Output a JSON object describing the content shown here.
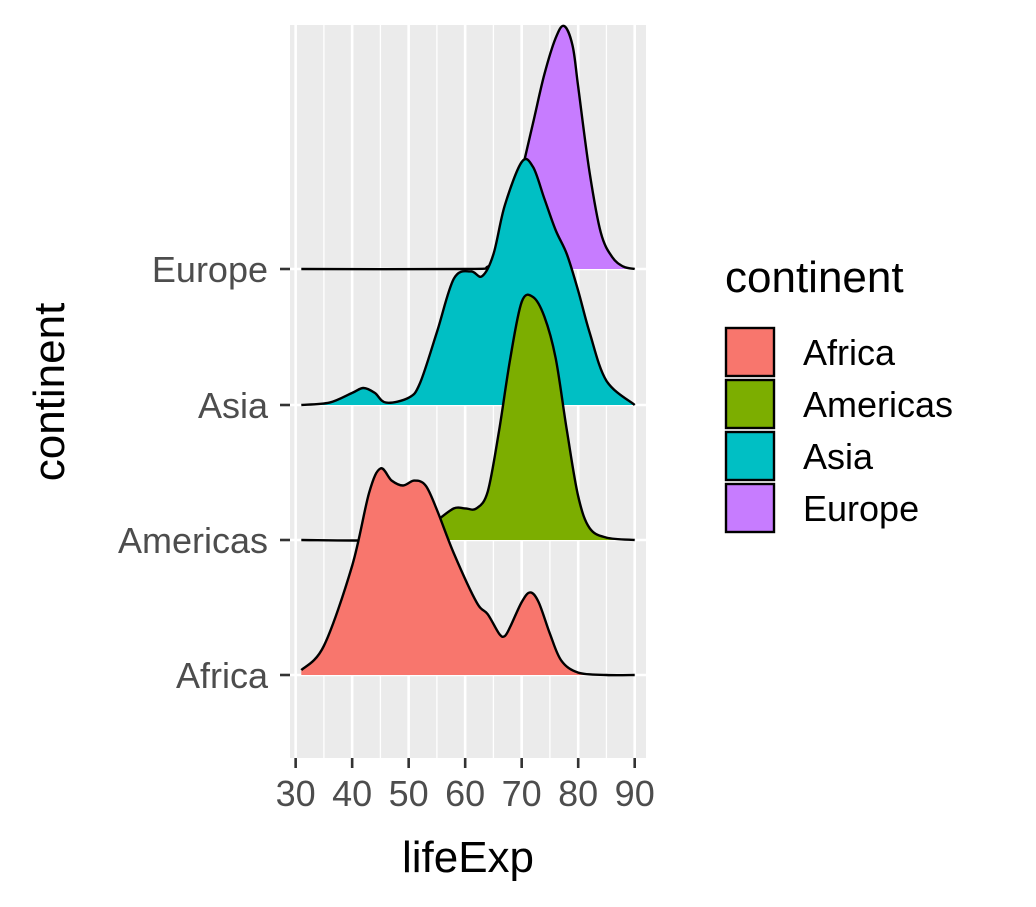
{
  "chart_data": {
    "type": "area",
    "subtype": "ridgeline",
    "title": "",
    "xlabel": "lifeExp",
    "ylabel": "continent",
    "xlim": [
      29,
      92
    ],
    "x_ticks": [
      30,
      40,
      50,
      60,
      70,
      80,
      90
    ],
    "x_tick_labels": [
      "30",
      "40",
      "50",
      "60",
      "70",
      "80",
      "90"
    ],
    "categories": [
      "Africa",
      "Americas",
      "Asia",
      "Europe"
    ],
    "grid": true,
    "legend": {
      "title": "continent",
      "position": "right",
      "items": [
        "Africa",
        "Americas",
        "Asia",
        "Europe"
      ]
    },
    "colors": {
      "Africa": "#F8766D",
      "Americas": "#7CAE00",
      "Asia": "#00BFC4",
      "Europe": "#C77CFF",
      "panel_background": "#EBEBEB",
      "grid_line": "#FFFFFF"
    },
    "series": [
      {
        "name": "Africa",
        "x": [
          31,
          35,
          40,
          43,
          45,
          47,
          49,
          51,
          53,
          55,
          58,
          62,
          64,
          66,
          67,
          68,
          70,
          71.5,
          73,
          75,
          77,
          80,
          85,
          90
        ],
        "density_rel": [
          0.02,
          0.12,
          0.45,
          0.75,
          0.85,
          0.8,
          0.78,
          0.8,
          0.78,
          0.68,
          0.5,
          0.3,
          0.25,
          0.17,
          0.16,
          0.2,
          0.3,
          0.34,
          0.3,
          0.17,
          0.06,
          0.01,
          0.0,
          0.0
        ]
      },
      {
        "name": "Americas",
        "x": [
          31,
          45,
          52,
          55,
          58,
          60,
          62,
          64,
          66,
          68,
          70,
          72,
          74,
          76,
          78,
          80,
          82,
          85,
          90
        ],
        "density_rel": [
          0.0,
          0.0,
          0.03,
          0.08,
          0.13,
          0.13,
          0.13,
          0.2,
          0.45,
          0.75,
          0.98,
          1.0,
          0.92,
          0.75,
          0.45,
          0.18,
          0.05,
          0.01,
          0.0
        ]
      },
      {
        "name": "Asia",
        "x": [
          31,
          36,
          40,
          42,
          44,
          46,
          50,
          52,
          55,
          58,
          61,
          63,
          65,
          67,
          70,
          72,
          74,
          76,
          78,
          80,
          82,
          85,
          90
        ],
        "density_rel": [
          0.0,
          0.01,
          0.05,
          0.07,
          0.05,
          0.01,
          0.03,
          0.09,
          0.3,
          0.52,
          0.55,
          0.53,
          0.62,
          0.82,
          1.0,
          0.98,
          0.85,
          0.72,
          0.62,
          0.47,
          0.3,
          0.1,
          0.0
        ]
      },
      {
        "name": "Europe",
        "x": [
          31,
          60,
          64,
          66,
          68,
          70,
          72,
          74,
          76,
          77.5,
          79,
          80,
          82,
          84,
          86,
          88,
          90
        ],
        "density_rel": [
          0.0,
          0.0,
          0.01,
          0.06,
          0.2,
          0.4,
          0.6,
          0.8,
          0.95,
          1.0,
          0.92,
          0.75,
          0.4,
          0.15,
          0.05,
          0.01,
          0.0
        ]
      }
    ],
    "ridge_scale": 1.8
  }
}
